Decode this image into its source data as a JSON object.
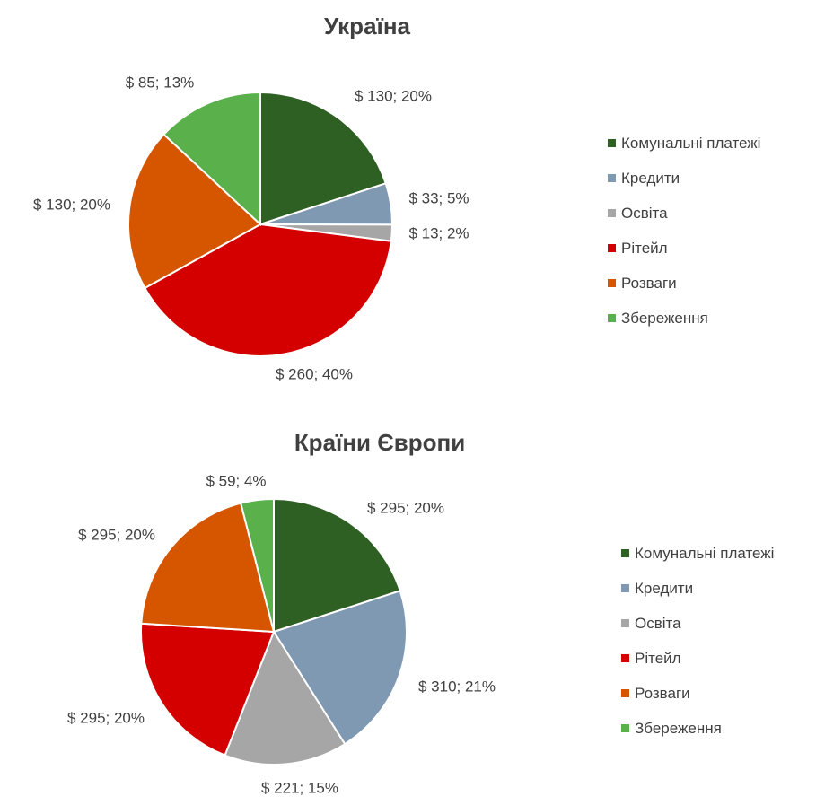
{
  "chart_data": [
    {
      "type": "pie",
      "title": "Україна",
      "categories": [
        "Комунальні платежі",
        "Кредити",
        "Освіта",
        "Рітейл",
        "Розваги",
        "Збереження"
      ],
      "values": [
        130,
        33,
        13,
        260,
        130,
        85
      ],
      "percents": [
        20,
        5,
        2,
        40,
        20,
        13
      ],
      "data_labels": [
        "$ 130; 20%",
        "$ 33; 5%",
        "$ 13; 2%",
        "$ 260; 40%",
        "$ 130; 20%",
        "$ 85; 13%"
      ],
      "colors": [
        "#2e5f23",
        "#7f99b2",
        "#a6a6a6",
        "#d40000",
        "#d65600",
        "#5ab04a"
      ],
      "legend_position": "right"
    },
    {
      "type": "pie",
      "title": "Країни Європи",
      "categories": [
        "Комунальні платежі",
        "Кредити",
        "Освіта",
        "Рітейл",
        "Розваги",
        "Збереження"
      ],
      "values": [
        295,
        310,
        221,
        295,
        295,
        59
      ],
      "percents": [
        20,
        21,
        15,
        20,
        20,
        4
      ],
      "data_labels": [
        "$ 295; 20%",
        "$ 310; 21%",
        "$ 221; 15%",
        "$ 295; 20%",
        "$ 295; 20%",
        "$ 59; 4%"
      ],
      "colors": [
        "#2e5f23",
        "#7f99b2",
        "#a6a6a6",
        "#d40000",
        "#d65600",
        "#5ab04a"
      ],
      "legend_position": "right"
    }
  ]
}
